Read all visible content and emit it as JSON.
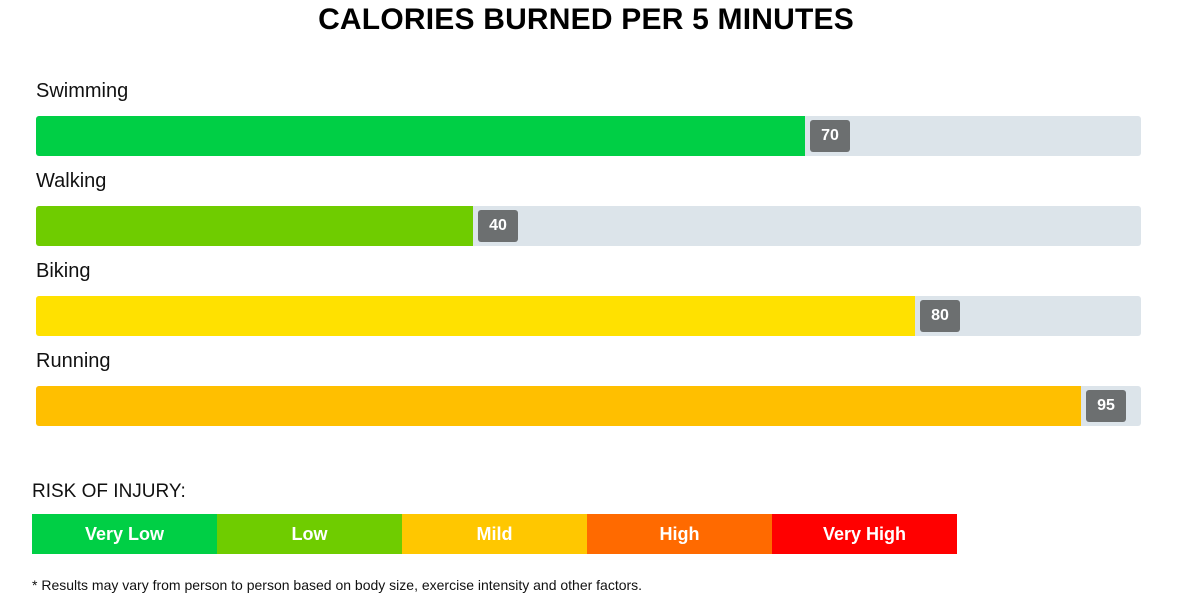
{
  "chart_data": {
    "type": "bar",
    "orientation": "horizontal",
    "title": "CALORIES BURNED PER 5 MINUTES",
    "xlim": [
      0,
      100
    ],
    "categories": [
      "Swimming",
      "Walking",
      "Biking",
      "Running"
    ],
    "values": [
      70,
      40,
      80,
      95
    ],
    "bar_colors": [
      "#00cf45",
      "#6fcc00",
      "#ffe100",
      "#ffbf00"
    ],
    "track_color": "#dce4ea",
    "value_tag_color": "#6c6f70"
  },
  "legend": {
    "title": "RISK OF INJURY:",
    "items": [
      {
        "label": "Very Low",
        "color": "#00cf45"
      },
      {
        "label": "Low",
        "color": "#6fcc00"
      },
      {
        "label": "Mild",
        "color": "#ffc700"
      },
      {
        "label": "High",
        "color": "#ff6a00"
      },
      {
        "label": "Very High",
        "color": "#ff0000"
      }
    ]
  },
  "footnote": "* Results may vary from person to person based on body size, exercise intensity and other factors."
}
